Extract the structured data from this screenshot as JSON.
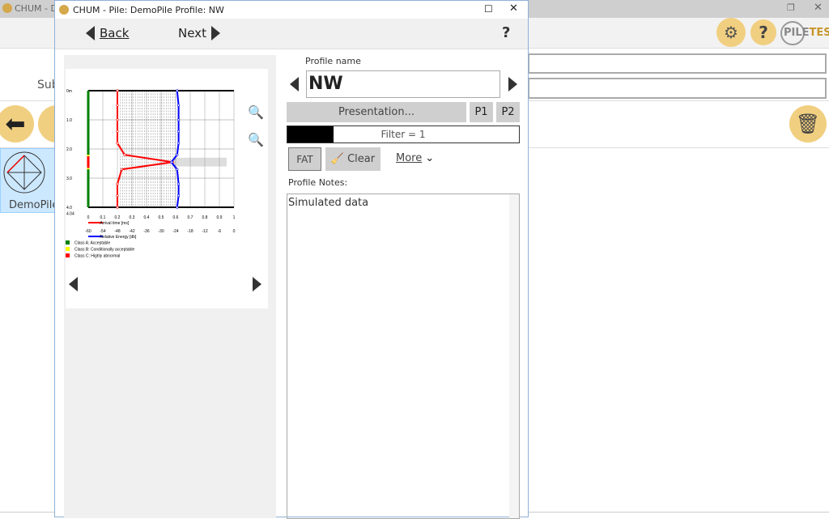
{
  "background_app": {
    "title": "CHUM - Demo",
    "sub_label": "Sub",
    "tile_label": "DemoPile",
    "logo_text": "PILETEST",
    "window_controls": [
      "restore-icon",
      "close-icon"
    ],
    "toolbar_icons": [
      "settings-gears-icon",
      "help-icon"
    ],
    "accent": "#f1cf80"
  },
  "dialog": {
    "title": "CHUM - Pile: DemoPile  Profile: NW",
    "back_label": "Back",
    "next_label": "Next",
    "help_label": "?",
    "profile_name_label": "Profile name",
    "profile_name": "NW",
    "presentation_label": "Presentation...",
    "p1_label": "P1",
    "p2_label": "P2",
    "filter_label": "Filter = 1",
    "filter_level": 0.2,
    "fat_label": "FAT",
    "clear_label": "Clear",
    "more_label": "More",
    "notes_label": "Profile Notes:",
    "notes_value": "Simulated data"
  },
  "chart_data": {
    "type": "line",
    "depth_ticks": [
      "0m",
      "1.0",
      "2.0",
      "3.0",
      "4.0",
      "4.04"
    ],
    "depth_values": [
      0,
      1,
      2,
      3,
      4
    ],
    "depth_max": 4.04,
    "x_ticks": [
      "0",
      "0.1",
      "0.2",
      "0.3",
      "0.4",
      "0.5",
      "0.6",
      "0.7",
      "0.8",
      "0.9",
      "1"
    ],
    "x2_ticks": [
      "-60",
      "-54",
      "-48",
      "-42",
      "-36",
      "-30",
      "-24",
      "-18",
      "-12",
      "-6",
      "0"
    ],
    "series": [
      {
        "name": "Arrival time [ms]",
        "color": "#ff0000",
        "depth": [
          0,
          0.5,
          1.0,
          1.4,
          1.8,
          2.2,
          2.45,
          2.7,
          3.2,
          3.6,
          4.0
        ],
        "values": [
          0.2,
          0.2,
          0.2,
          0.2,
          0.2,
          0.25,
          0.58,
          0.23,
          0.2,
          0.2,
          0.2
        ]
      },
      {
        "name": "Relative Energy [db]",
        "color": "#0000ff",
        "depth": [
          0,
          0.5,
          1.0,
          1.4,
          1.8,
          2.2,
          2.45,
          2.7,
          3.2,
          3.6,
          4.0
        ],
        "values": [
          0.61,
          0.62,
          0.62,
          0.62,
          0.62,
          0.61,
          0.57,
          0.61,
          0.62,
          0.62,
          0.61
        ]
      }
    ],
    "legend": [
      {
        "label": "Class A: Acceptable",
        "color": "#008000"
      },
      {
        "label": "Class B: Conditionally acceptable",
        "color": "#ffff00"
      },
      {
        "label": "Class C: Highly abnormal",
        "color": "#ff0000"
      }
    ]
  }
}
